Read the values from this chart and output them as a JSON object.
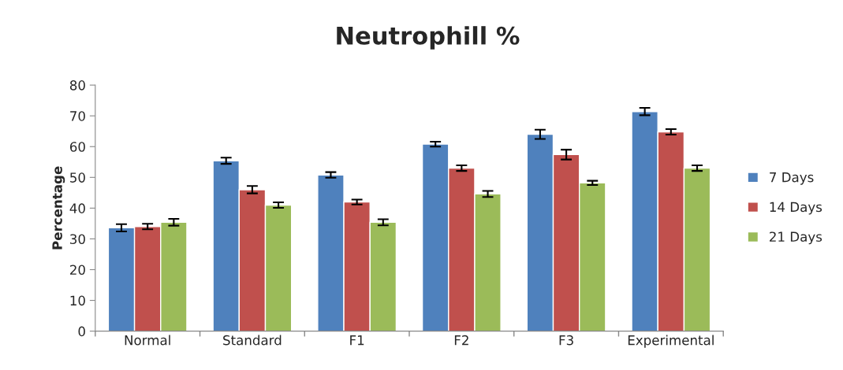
{
  "chart_data": {
    "type": "bar",
    "title": "Neutrophill %",
    "ylabel": "Percentage",
    "categories": [
      "Normal",
      "Standard",
      "F1",
      "F2",
      "F3",
      "Experimental"
    ],
    "series": [
      {
        "name": "7 Days",
        "color": "#4f81bd",
        "values": [
          33.6,
          55.4,
          50.8,
          60.8,
          64.0,
          71.4
        ],
        "errors": [
          1.2,
          1.0,
          0.9,
          0.8,
          1.5,
          1.2
        ]
      },
      {
        "name": "14 Days",
        "color": "#c0504d",
        "values": [
          34.0,
          46.0,
          42.0,
          53.0,
          57.4,
          64.8
        ],
        "errors": [
          0.9,
          1.2,
          0.8,
          0.9,
          1.6,
          0.9
        ]
      },
      {
        "name": "21 Days",
        "color": "#9bbb59",
        "values": [
          35.4,
          41.0,
          35.4,
          44.6,
          48.2,
          53.0
        ],
        "errors": [
          1.1,
          0.9,
          1.0,
          1.0,
          0.7,
          0.9
        ]
      }
    ],
    "ylim": [
      0,
      80
    ],
    "yticks": [
      0,
      10,
      20,
      30,
      40,
      50,
      60,
      70,
      80
    ],
    "grid": false,
    "legend": "right"
  }
}
